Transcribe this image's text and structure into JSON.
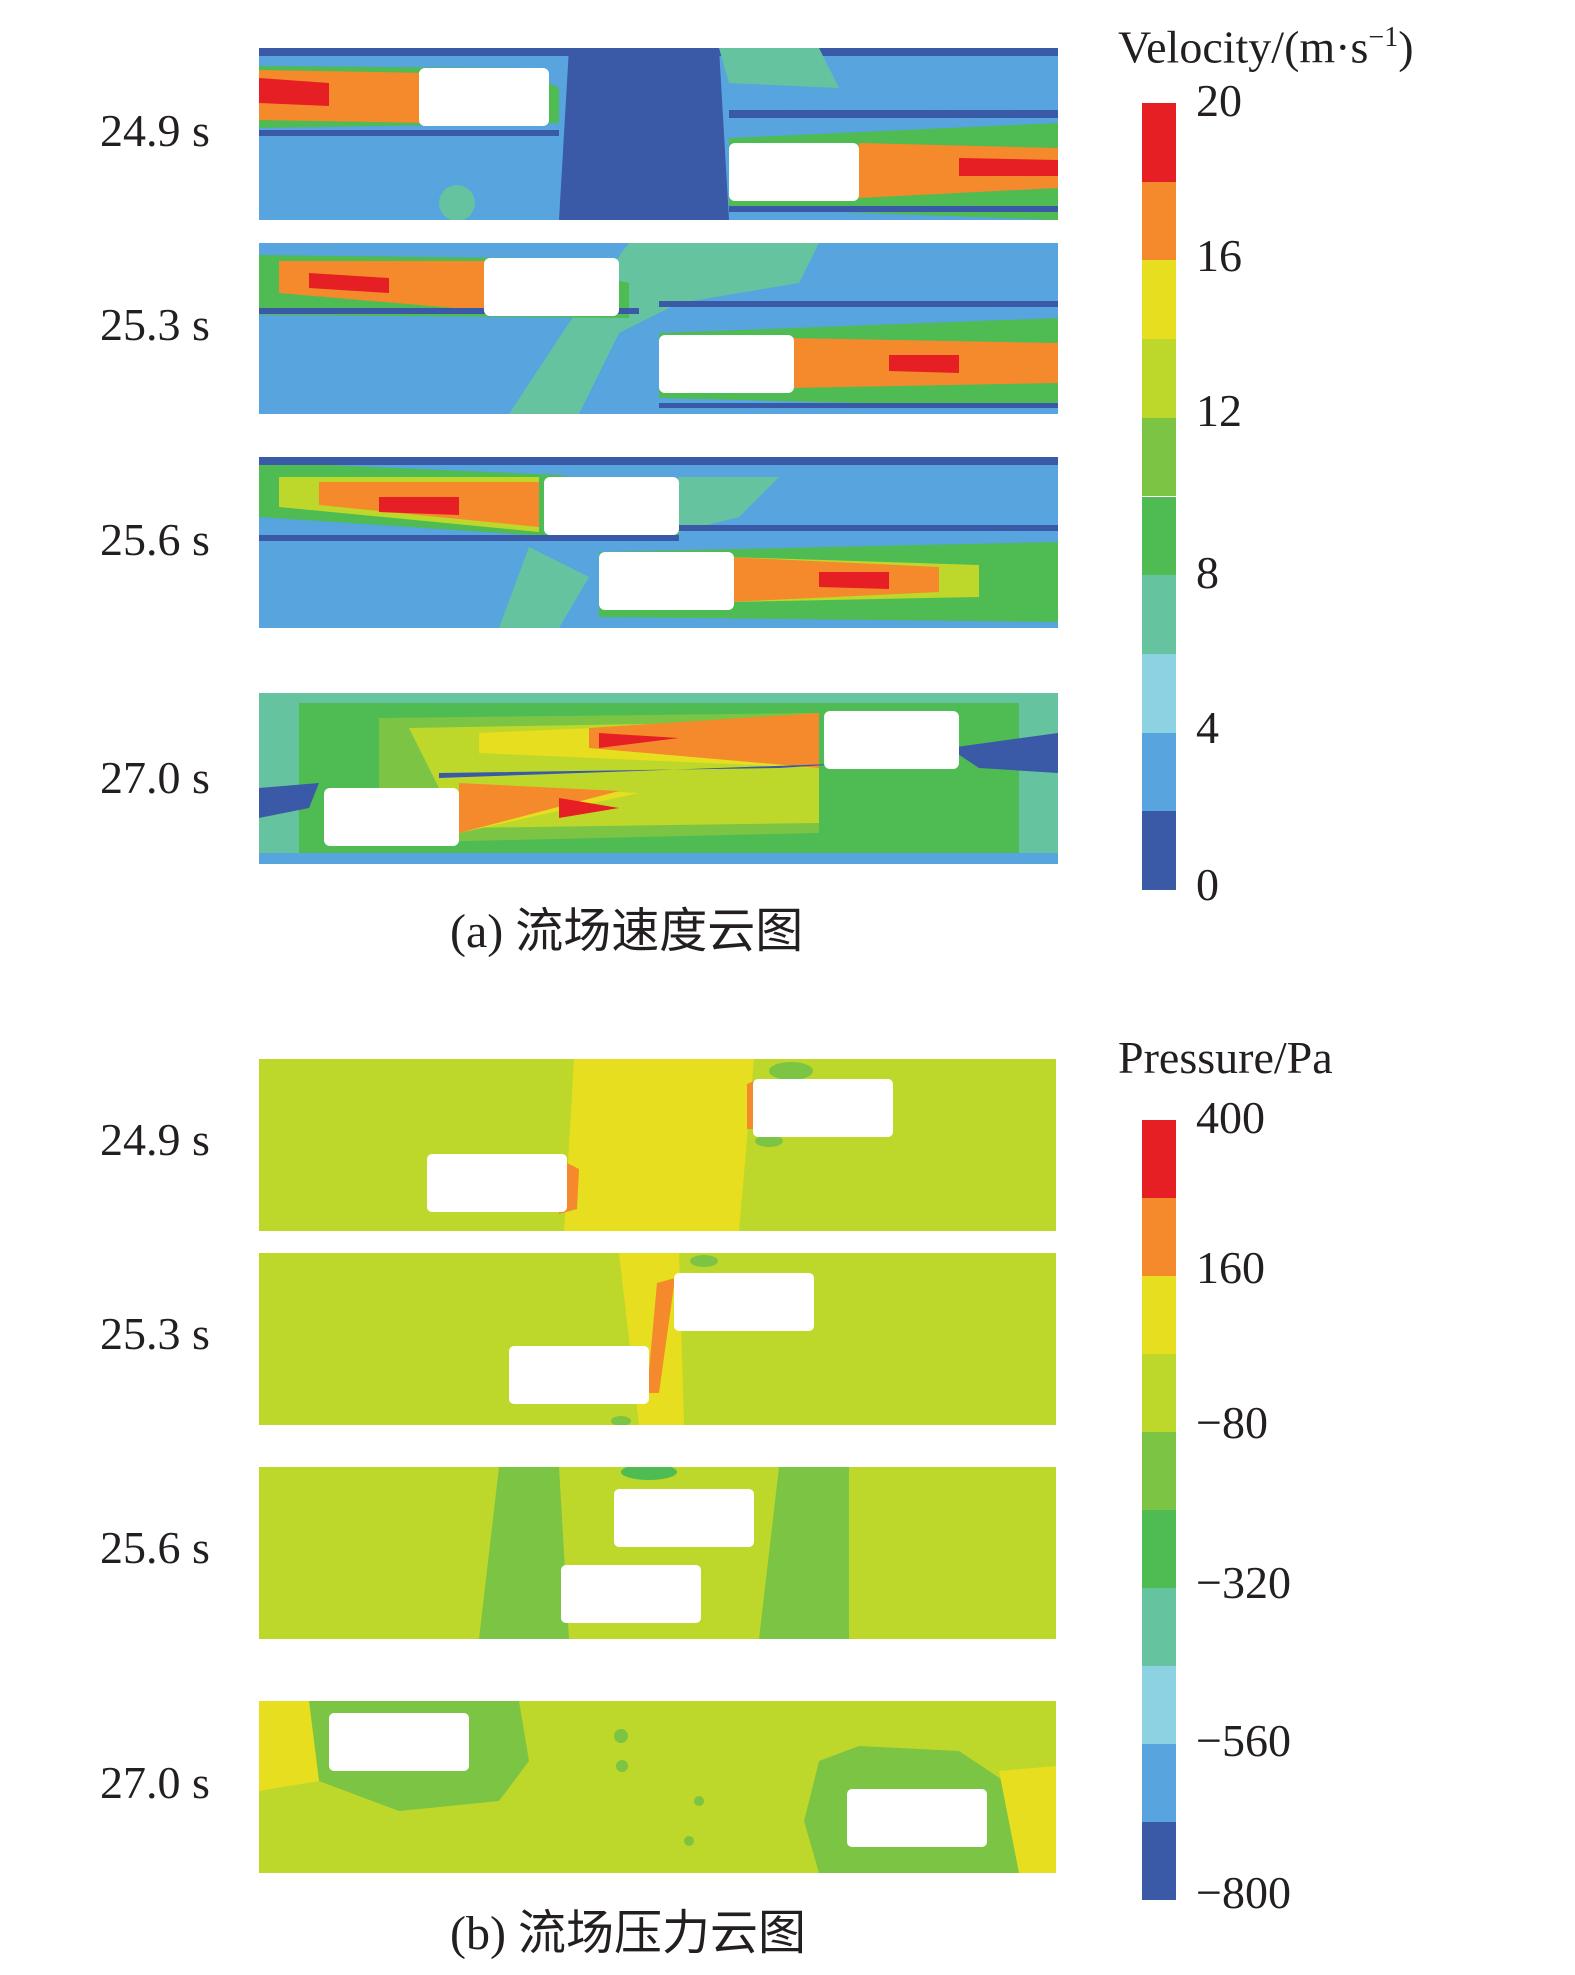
{
  "figure_a": {
    "caption": "(a) 流场速度云图",
    "legend": {
      "title_main": "Velocity/(m·s",
      "title_sup": "−1",
      "title_close": ")",
      "ticks": [
        "20",
        "16",
        "12",
        "8",
        "4",
        "0"
      ],
      "colors": [
        "#e61f25",
        "#f48a2c",
        "#e6de1f",
        "#bdd82a",
        "#7cc444",
        "#4fbb53",
        "#66c3a0",
        "#8dd2e3",
        "#57a4df",
        "#3a59a6"
      ]
    },
    "panels": [
      {
        "time": "24.9 s"
      },
      {
        "time": "25.3 s"
      },
      {
        "time": "25.6 s"
      },
      {
        "time": "27.0 s"
      }
    ]
  },
  "figure_b": {
    "caption": "(b) 流场压力云图",
    "legend": {
      "title": "Pressure/Pa",
      "ticks": [
        "400",
        "160",
        "−80",
        "−320",
        "−560",
        "−800"
      ],
      "colors": [
        "#e61f25",
        "#f48a2c",
        "#e6de1f",
        "#bdd82a",
        "#7cc444",
        "#4fbb53",
        "#66c3a0",
        "#8dd2e3",
        "#57a4df",
        "#3a59a6"
      ]
    },
    "panels": [
      {
        "time": "24.9 s"
      },
      {
        "time": "25.3 s"
      },
      {
        "time": "25.6 s"
      },
      {
        "time": "27.0 s"
      }
    ]
  }
}
